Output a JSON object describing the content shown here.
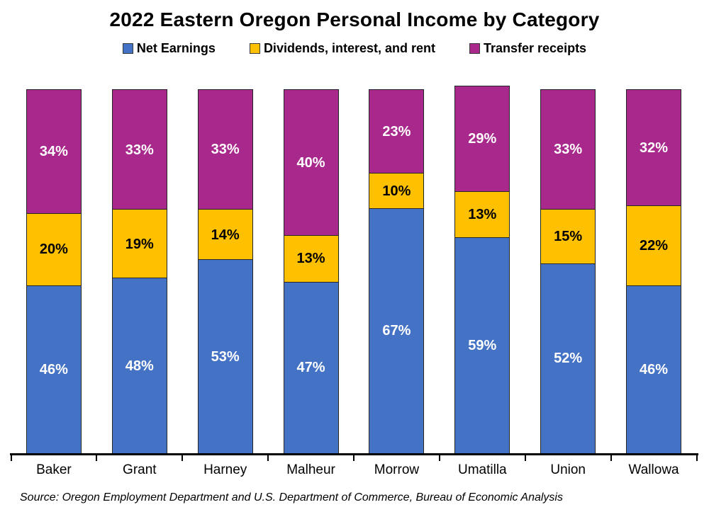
{
  "title": "2022 Eastern Oregon Personal Income by Category",
  "legend": {
    "items": [
      {
        "label": "Net Earnings",
        "color": "#4472C4"
      },
      {
        "label": "Dividends, interest, and rent",
        "color": "#FFC000"
      },
      {
        "label": "Transfer receipts",
        "color": "#A8288C"
      }
    ]
  },
  "source_note": "Source: Oregon Employment Department and U.S. Department of Commerce, Bureau of Economic Analysis",
  "chart_data": {
    "type": "bar",
    "stacked": true,
    "orientation": "vertical",
    "title": "2022 Eastern Oregon Personal Income by Category",
    "categories": [
      "Baker",
      "Grant",
      "Harney",
      "Malheur",
      "Morrow",
      "Umatilla",
      "Union",
      "Wallowa"
    ],
    "series": [
      {
        "name": "Net Earnings",
        "color": "#4472C4",
        "label_color": "#FFFFFF",
        "values": [
          46,
          48,
          53,
          47,
          67,
          59,
          52,
          46
        ]
      },
      {
        "name": "Dividends, interest, and rent",
        "color": "#FFC000",
        "label_color": "#000000",
        "values": [
          20,
          19,
          14,
          13,
          10,
          13,
          15,
          22
        ]
      },
      {
        "name": "Transfer receipts",
        "color": "#A8288C",
        "label_color": "#FFFFFF",
        "values": [
          34,
          33,
          33,
          40,
          23,
          29,
          33,
          32
        ]
      }
    ],
    "value_suffix": "%",
    "data_labels": true,
    "legend_position": "top",
    "grid": false,
    "xlabel": "",
    "ylabel": "",
    "ylim": [
      0,
      101
    ],
    "axis_color": "#000000"
  }
}
